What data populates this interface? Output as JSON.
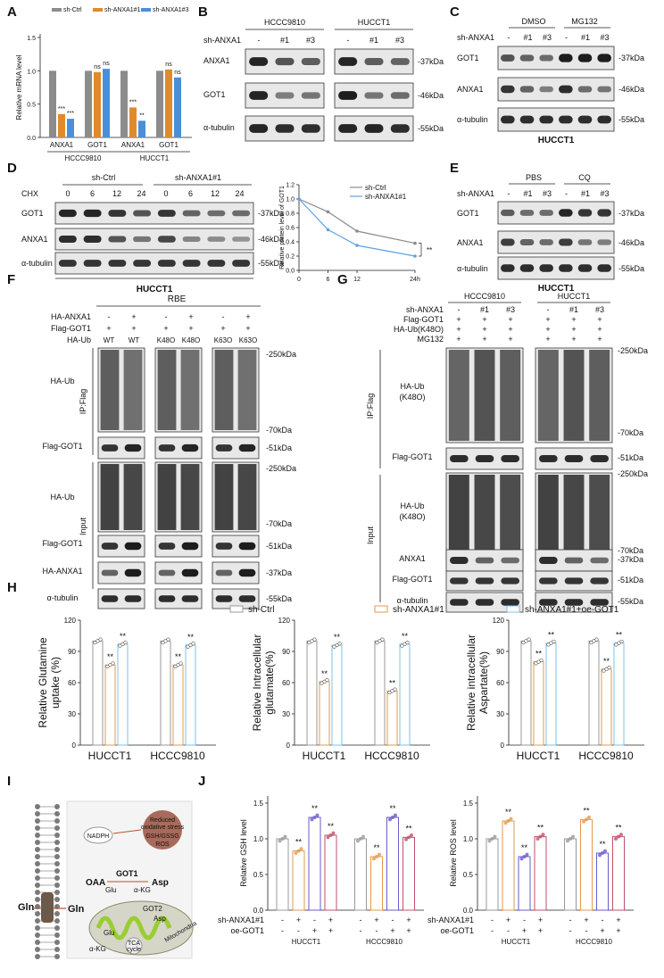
{
  "panel_letters": [
    "A",
    "B",
    "C",
    "D",
    "E",
    "F",
    "G",
    "H",
    "I",
    "J"
  ],
  "A": {
    "legend": [
      "sh-Ctrl",
      "sh-ANXA1#1",
      "sh-ANXA1#3"
    ],
    "ylabel": "Relative mRNA level",
    "groups": [
      "HCCC9810",
      "HUCCT1"
    ],
    "gene_labels": [
      "ANXA1",
      "GOT1",
      "ANXA1",
      "GOT1"
    ],
    "sig": [
      "***",
      "***",
      "ns",
      "ns",
      "***",
      "**",
      "ns",
      "ns"
    ],
    "yticks": [
      "0.0",
      "0.5",
      "1.0",
      "1.5"
    ]
  },
  "B": {
    "cells": [
      "HCCC9810",
      "HUCCT1"
    ],
    "lanes": [
      "-",
      "#1",
      "#3",
      "-",
      "#1",
      "#3"
    ],
    "treat_label": "sh-ANXA1",
    "rows": [
      "ANXA1",
      "GOT1",
      "α-tubulin"
    ],
    "kda": [
      "-37kDa",
      "-46kDa",
      "-55kDa"
    ]
  },
  "C": {
    "groups": [
      "sh-Ctrl",
      "sh-ANXA1#1"
    ],
    "chx": "CHX",
    "lanes": [
      "0",
      "6",
      "12",
      "24",
      "0",
      "6",
      "12",
      "24"
    ],
    "rows": [
      "GOT1",
      "ANXA1",
      "α-tubulin"
    ],
    "kda": [
      "-37kDa",
      "-46kDa",
      "-55kDa"
    ],
    "cell": "HUCCT1",
    "legend": [
      "sh-Ctrl",
      "sh-ANXA1#1"
    ],
    "ylabel": "Relative protein level of GOT1",
    "xticks": [
      "0",
      "6",
      "12",
      "24h"
    ],
    "yticks": [
      "0.0",
      "0.2",
      "0.4",
      "0.6",
      "0.8",
      "1.0",
      "1.2"
    ],
    "sig": "**"
  },
  "D": {
    "groups": [
      "DMSO",
      "MG132"
    ],
    "treat_label": "sh-ANXA1",
    "lanes": [
      "-",
      "#1",
      "#3",
      "-",
      "#1",
      "#3"
    ],
    "rows": [
      "GOT1",
      "ANXA1",
      "α-tubulin"
    ],
    "kda": [
      "-37kDa",
      "-46kDa",
      "-55kDa"
    ],
    "cell": "HUCCT1"
  },
  "E": {
    "groups": [
      "PBS",
      "CQ"
    ],
    "treat_label": "sh-ANXA1",
    "lanes": [
      "-",
      "#1",
      "#3",
      "-",
      "#1",
      "#3"
    ],
    "rows": [
      "GOT1",
      "ANXA1",
      "α-tubulin"
    ],
    "kda": [
      "-37kDa",
      "-46kDa",
      "-55kDa"
    ],
    "cell": "HUCCT1"
  },
  "F": {
    "cell": "RBE",
    "cond_labels": [
      "HA-ANXA1",
      "Flag-GOT1",
      "HA-Ub"
    ],
    "anxa1": [
      "-",
      "+",
      "-",
      "+",
      "-",
      "+"
    ],
    "got1": [
      "+",
      "+",
      "+",
      "+",
      "+",
      "+"
    ],
    "ub": [
      "WT",
      "WT",
      "K48O",
      "K48O",
      "K63O",
      "K63O"
    ],
    "ip_label": "IP:Flag",
    "input_label": "Input",
    "rows": [
      "HA-Ub",
      "Flag-GOT1",
      "HA-Ub",
      "Flag-GOT1",
      "HA-ANXA1",
      "α-tubulin"
    ],
    "kda": [
      "-250kDa",
      "-70kDa",
      "-51kDa",
      "-250kDa",
      "-70kDa",
      "-51kDa",
      "-37kDa",
      "-55kDa"
    ]
  },
  "G": {
    "cells": [
      "HCCC9810",
      "HUCCT1"
    ],
    "cond_labels": [
      "sh-ANXA1",
      "Flag-GOT1",
      "HA-Ub(K48O)",
      "MG132"
    ],
    "lanes": [
      "-",
      "#1",
      "#3",
      "-",
      "#1",
      "#3"
    ],
    "plus": "+",
    "ip_label": "IP:Flag",
    "input_label": "Input",
    "rows": [
      "HA-Ub (K48O)",
      "Flag-GOT1",
      "HA-Ub (K48O)",
      "ANXA1",
      "Flag-GOT1",
      "α-tubulin"
    ],
    "kda": [
      "-250kDa",
      "-70kDa",
      "-51kDa",
      "-250kDa",
      "-70kDa",
      "-37kDa",
      "-51kDa",
      "-55kDa"
    ]
  },
  "H": {
    "legend": [
      "sh-Ctrl",
      "sh-ANXA1#1",
      "sh-ANXA1#1+oe-GOT1"
    ],
    "charts": [
      {
        "ylabel": "Relative Glutamine uptake (%)",
        "groups": [
          "HUCCT1",
          "HCCC9810"
        ],
        "values": [
          [
            100,
            77,
            97
          ],
          [
            100,
            77,
            96
          ]
        ]
      },
      {
        "ylabel": "Relative Intracellular glutamate(%)",
        "groups": [
          "HUCCT1",
          "HCCC9810"
        ],
        "values": [
          [
            100,
            61,
            96
          ],
          [
            100,
            52,
            97
          ]
        ]
      },
      {
        "ylabel": "Relative intracellular Aspartate(%)",
        "groups": [
          "HUCCT1",
          "HCCC9810"
        ],
        "values": [
          [
            100,
            80,
            98
          ],
          [
            100,
            73,
            98
          ]
        ]
      }
    ],
    "yticks": [
      "0",
      "30",
      "60",
      "90",
      "120"
    ],
    "sig": "**"
  },
  "I": {
    "labels": [
      "Gln",
      "Gln",
      "NADPH",
      "Reduced oxidative stress",
      "GSH/GSSG",
      "ROS",
      "OAA",
      "GOT1",
      "Asp",
      "Glu",
      "α-KG",
      "GOT2",
      "Asp",
      "Glu",
      "α-KG",
      "TCA cycle",
      "Mitochondria"
    ]
  },
  "J": {
    "charts": [
      {
        "ylabel": "Relative GSH level",
        "groups": [
          "HUCCT1",
          "HCCC9810"
        ],
        "values": [
          [
            1.0,
            0.83,
            1.3,
            1.05
          ],
          [
            1.0,
            0.75,
            1.3,
            1.02
          ]
        ],
        "yticks": [
          "0.0",
          "0.5",
          "1.0",
          "1.5"
        ]
      },
      {
        "ylabel": "Relative ROS level",
        "groups": [
          "HUCCT1",
          "HCCC9810"
        ],
        "values": [
          [
            1.0,
            1.25,
            0.75,
            1.03
          ],
          [
            1.0,
            1.27,
            0.8,
            1.03
          ]
        ],
        "yticks": [
          "0.0",
          "0.5",
          "1.0",
          "1.5"
        ]
      }
    ],
    "row_labels": [
      "sh-ANXA1#1",
      "oe-GOT1"
    ],
    "sh": [
      "-",
      "+",
      "-",
      "+"
    ],
    "oe": [
      "-",
      "-",
      "+",
      "+"
    ],
    "sig": "**"
  },
  "colors": {
    "ctrl": "#8c8c8c",
    "sh1": "#e08a2c",
    "sh3": "#4a8fd8",
    "oe": "#8fc7e8",
    "gsh_oe": "#6a5acd",
    "gsh_both": "#c0506a"
  }
}
